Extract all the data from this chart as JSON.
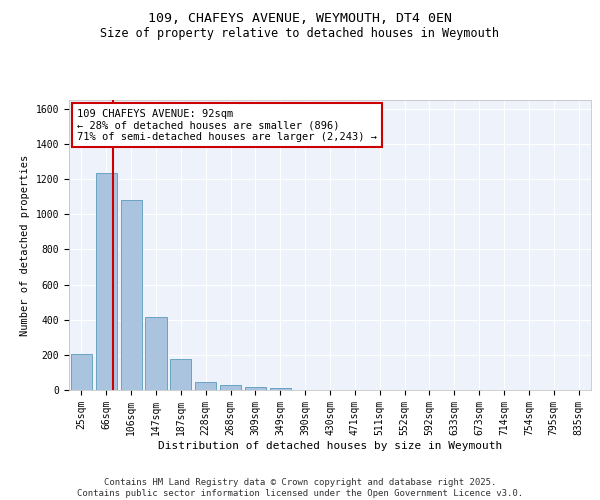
{
  "title": "109, CHAFEYS AVENUE, WEYMOUTH, DT4 0EN",
  "subtitle": "Size of property relative to detached houses in Weymouth",
  "xlabel": "Distribution of detached houses by size in Weymouth",
  "ylabel": "Number of detached properties",
  "bar_color": "#aac4e0",
  "bar_edge_color": "#5a9abe",
  "background_color": "#eef2fb",
  "grid_color": "#ffffff",
  "annotation_text": "109 CHAFEYS AVENUE: 92sqm\n← 28% of detached houses are smaller (896)\n71% of semi-detached houses are larger (2,243) →",
  "annotation_box_color": "#cc0000",
  "vline_color": "#cc0000",
  "vline_pos": 1.28,
  "categories": [
    "25sqm",
    "66sqm",
    "106sqm",
    "147sqm",
    "187sqm",
    "228sqm",
    "268sqm",
    "309sqm",
    "349sqm",
    "390sqm",
    "430sqm",
    "471sqm",
    "511sqm",
    "552sqm",
    "592sqm",
    "633sqm",
    "673sqm",
    "714sqm",
    "754sqm",
    "795sqm",
    "835sqm"
  ],
  "values": [
    205,
    1235,
    1080,
    415,
    178,
    45,
    27,
    18,
    10,
    0,
    0,
    0,
    0,
    0,
    0,
    0,
    0,
    0,
    0,
    0,
    0
  ],
  "ylim": [
    0,
    1650
  ],
  "yticks": [
    0,
    200,
    400,
    600,
    800,
    1000,
    1200,
    1400,
    1600
  ],
  "footer_text": "Contains HM Land Registry data © Crown copyright and database right 2025.\nContains public sector information licensed under the Open Government Licence v3.0.",
  "title_fontsize": 9.5,
  "subtitle_fontsize": 8.5,
  "xlabel_fontsize": 8,
  "ylabel_fontsize": 7.5,
  "tick_fontsize": 7,
  "annotation_fontsize": 7.5,
  "footer_fontsize": 6.5
}
